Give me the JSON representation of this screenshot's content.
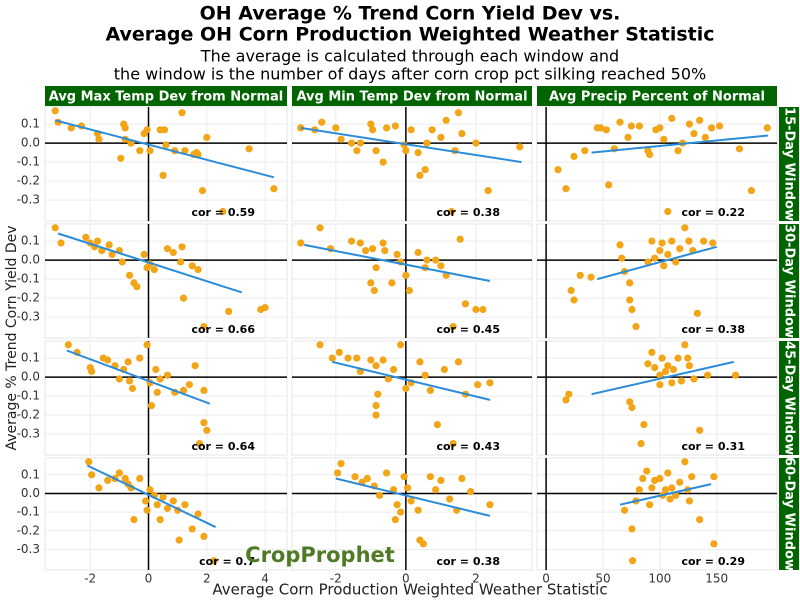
{
  "chart_data": {
    "type": "scatter",
    "title": [
      "OH Average % Trend Corn Yield Dev vs.",
      "Average OH Corn Production Weighted Weather Statistic"
    ],
    "subtitle": [
      "The average is calculated through each window and",
      "the window is the number of days after corn crop pct silking reached 50%"
    ],
    "xlabel": "Average Corn Production Weighted Weather Statistic",
    "ylabel": "Average % Trend Corn Yield Dev",
    "watermark": "CropProphet",
    "point_color": "#f2a516",
    "fit_color": "#2b8cd9",
    "strip_color": "#006400",
    "grid": true,
    "ylim": [
      -0.41,
      0.19
    ],
    "yticks": [
      0.1,
      {
        "value": 0,
        "label": "0.0"
      },
      -0.1,
      -0.2,
      -0.3
    ],
    "facet_columns": [
      {
        "label": "Avg Max Temp Dev from Normal",
        "xlim": [
          -3.55,
          4.75
        ],
        "xticks": [
          -2,
          0,
          2,
          4
        ]
      },
      {
        "label": "Avg Min Temp Dev from Normal",
        "xlim": [
          -3.25,
          3.6
        ],
        "xticks": [
          -2,
          0,
          2
        ]
      },
      {
        "label": "Avg Precip Percent of Normal",
        "xlim": [
          -8,
          203
        ],
        "xticks": [
          0,
          50,
          100,
          150
        ]
      }
    ],
    "facet_rows": [
      "15-Day Window",
      "30-Day Window",
      "45-Day Window",
      "60-Day Window"
    ],
    "panels": [
      {
        "x": [
          -3.2,
          -3.1,
          -2.65,
          -2.3,
          -1.75,
          -1.7,
          -0.85,
          -0.8,
          -0.8,
          -0.95,
          -0.6,
          -0.3,
          -0.15,
          -0.05,
          0.05,
          0.4,
          0.5,
          0.55,
          0.6,
          0.9,
          1.15,
          1.25,
          1.55,
          1.65,
          1.7,
          1.85,
          2.0,
          2.55,
          3.45,
          4.3
        ],
        "y": [
          0.17,
          0.11,
          0.08,
          0.09,
          0.05,
          0.02,
          0.1,
          0.08,
          0.02,
          -0.08,
          0.0,
          -0.04,
          0.05,
          0.07,
          -0.04,
          0.07,
          -0.17,
          0.07,
          -0.01,
          -0.04,
          0.16,
          -0.04,
          -0.06,
          -0.05,
          -0.06,
          -0.25,
          0.03,
          -0.36,
          -0.03,
          -0.24
        ],
        "fit": {
          "x": [
            -3.2,
            4.3
          ],
          "y": [
            0.12,
            -0.18
          ]
        },
        "annotation": "cor = 0.59"
      },
      {
        "x": [
          -3.0,
          -2.6,
          -2.4,
          -2.0,
          -1.85,
          -1.55,
          -1.4,
          -1.3,
          -1.0,
          -0.95,
          -0.85,
          -0.65,
          -0.55,
          -0.3,
          -0.05,
          0,
          0.15,
          0.35,
          0.4,
          0.55,
          0.6,
          0.75,
          1.0,
          1.15,
          1.4,
          1.6,
          1.5,
          2.0,
          2.35,
          1.3,
          3.25
        ],
        "y": [
          0.08,
          0.07,
          0.11,
          0.08,
          0.02,
          0.0,
          -0.04,
          0.0,
          0.1,
          0.07,
          -0.04,
          -0.1,
          0.08,
          0.09,
          -0.01,
          -0.04,
          0.07,
          -0.05,
          -0.17,
          -0.14,
          0.0,
          0.07,
          0.03,
          0.12,
          -0.04,
          0.05,
          0.16,
          0.0,
          -0.25,
          -0.36,
          -0.02
        ],
        "fit": {
          "x": [
            -3.0,
            3.3
          ],
          "y": [
            0.08,
            -0.1
          ]
        },
        "annotation": "cor = 0.38"
      },
      {
        "x": [
          10.5,
          17.5,
          24.5,
          34,
          45,
          48,
          53,
          55,
          60,
          65,
          72,
          75,
          82,
          89.5,
          91,
          96.5,
          100,
          103.5,
          107,
          110.5,
          116,
          120,
          126,
          130,
          135,
          140,
          145.5,
          152.5,
          170,
          180.5,
          194.5
        ],
        "y": [
          -0.14,
          -0.24,
          -0.07,
          -0.04,
          0.08,
          0.08,
          0.07,
          -0.22,
          -0.03,
          0.11,
          0.03,
          0.09,
          0.09,
          -0.04,
          -0.06,
          0.07,
          0.08,
          0.02,
          -0.36,
          0.13,
          -0.04,
          0.0,
          0.1,
          0.05,
          0.12,
          0.03,
          0.08,
          0.09,
          -0.03,
          -0.25,
          0.08
        ],
        "fit": {
          "x": [
            40,
            195
          ],
          "y": [
            -0.05,
            0.04
          ]
        },
        "annotation": "cor = 0.22"
      },
      {
        "x": [
          -3.2,
          -3.0,
          -2.15,
          -2.0,
          -1.85,
          -1.75,
          -1.6,
          -1.35,
          -1.25,
          -1.0,
          -0.9,
          -0.65,
          -0.5,
          -0.4,
          -0.15,
          -0.05,
          0.05,
          0.2,
          0.65,
          0.85,
          1.1,
          1.15,
          1.2,
          1.5,
          1.7,
          1.9,
          2.75,
          3.85,
          4.0
        ],
        "y": [
          0.17,
          0.09,
          0.12,
          0.09,
          0.07,
          0.1,
          0.05,
          0.08,
          0.03,
          0.05,
          -0.01,
          -0.08,
          -0.12,
          -0.14,
          0.03,
          -0.04,
          -0.02,
          -0.05,
          0.06,
          0.04,
          -0.01,
          0.07,
          -0.2,
          -0.03,
          -0.05,
          -0.35,
          -0.27,
          -0.26,
          -0.25
        ],
        "fit": {
          "x": [
            -3.1,
            3.2
          ],
          "y": [
            0.14,
            -0.17
          ]
        },
        "annotation": "cor = 0.66"
      },
      {
        "x": [
          -3.0,
          -2.45,
          -2.15,
          -1.55,
          -1.3,
          -1.15,
          -0.95,
          -0.85,
          -0.65,
          -0.6,
          -1.0,
          -0.9,
          -0.4,
          -0.25,
          -0.15,
          0,
          0.1,
          0.35,
          0.55,
          0.6,
          0.85,
          1.0,
          1.15,
          1.35,
          1.55,
          1.7,
          2.0,
          2.2
        ],
        "y": [
          0.09,
          0.17,
          0.06,
          0.1,
          0.09,
          0.05,
          0.06,
          -0.04,
          0.09,
          0.05,
          -0.12,
          -0.16,
          -0.12,
          0.03,
          -0.01,
          -0.08,
          -0.16,
          0.04,
          -0.04,
          0.0,
          0.0,
          -0.03,
          -0.08,
          -0.35,
          0.11,
          -0.23,
          -0.26,
          -0.26
        ],
        "fit": {
          "x": [
            -2.9,
            2.4
          ],
          "y": [
            0.08,
            -0.11
          ]
        },
        "annotation": "cor = 0.45"
      },
      {
        "x": [
          22,
          24.5,
          30,
          39.5,
          65,
          66.5,
          69,
          73.5,
          73.5,
          75.5,
          79,
          89.5,
          93,
          95.5,
          100,
          102,
          103.5,
          107,
          110.5,
          114,
          117.5,
          122,
          125.5,
          129,
          133,
          138.5,
          146.5
        ],
        "y": [
          -0.16,
          -0.21,
          -0.08,
          -0.09,
          0.08,
          0.01,
          -0.06,
          -0.12,
          -0.21,
          -0.26,
          -0.35,
          -0.01,
          0.1,
          0.01,
          0.05,
          0.09,
          -0.03,
          0.03,
          0.1,
          -0.01,
          0.06,
          0.17,
          0.1,
          0.05,
          -0.28,
          0.1,
          0.09
        ],
        "fit": {
          "x": [
            45,
            150
          ],
          "y": [
            -0.1,
            0.07
          ]
        },
        "annotation": "cor = 0.38"
      },
      {
        "x": [
          -2.75,
          -2.45,
          -2.0,
          -1.95,
          -1.55,
          -1.4,
          -1.15,
          -1.0,
          -0.85,
          -0.7,
          -0.65,
          -0.55,
          -0.3,
          -0.05,
          0.05,
          0.1,
          0.25,
          0.3,
          0.4,
          0.65,
          0.9,
          1.2,
          1.4,
          1.6,
          1.9,
          1.9,
          1.75,
          2.0
        ],
        "y": [
          0.17,
          0.13,
          0.05,
          0.03,
          0.1,
          0.09,
          0.06,
          -0.01,
          0.04,
          0.08,
          -0.02,
          -0.06,
          0.1,
          0.17,
          -0.03,
          -0.15,
          0.04,
          -0.08,
          -0.01,
          0.01,
          -0.08,
          -0.07,
          -0.04,
          0.06,
          -0.07,
          -0.24,
          -0.35,
          -0.28
        ],
        "fit": {
          "x": [
            -2.8,
            2.1
          ],
          "y": [
            0.14,
            -0.14
          ]
        },
        "annotation": "cor = 0.64"
      },
      {
        "x": [
          -2.45,
          -2.1,
          -1.9,
          -1.65,
          -1.4,
          -1.3,
          -1.0,
          -0.85,
          -0.8,
          -0.85,
          -0.85,
          -0.65,
          -0.5,
          -0.35,
          -0.15,
          0,
          0.15,
          0.4,
          0.55,
          0.7,
          0.9,
          1.1,
          1.35,
          1.5,
          1.7,
          2.05,
          2.4
        ],
        "y": [
          0.17,
          0.1,
          0.13,
          0.1,
          0.1,
          0.03,
          0.09,
          0.06,
          -0.09,
          -0.15,
          -0.2,
          0.09,
          -0.01,
          0.04,
          0.17,
          -0.06,
          -0.03,
          0.08,
          0.01,
          -0.07,
          -0.25,
          0.04,
          -0.35,
          0.08,
          -0.09,
          -0.04,
          -0.03
        ],
        "fit": {
          "x": [
            -2.1,
            2.4
          ],
          "y": [
            0.08,
            -0.12
          ]
        },
        "annotation": "cor = 0.43"
      },
      {
        "x": [
          17.5,
          20,
          73.5,
          75.5,
          83.5,
          86,
          89.5,
          93,
          95.5,
          100,
          100,
          102,
          105,
          107,
          110.5,
          112,
          116,
          119,
          122,
          124.5,
          126,
          130,
          135,
          142,
          166.5
        ],
        "y": [
          -0.12,
          -0.09,
          -0.13,
          -0.16,
          -0.35,
          -0.25,
          0.07,
          0.13,
          0.05,
          0.01,
          -0.04,
          0.1,
          0.03,
          0.06,
          -0.03,
          0.04,
          0.1,
          -0.02,
          0.17,
          0.1,
          0.06,
          -0.01,
          -0.28,
          0.01,
          0.01
        ],
        "fit": {
          "x": [
            40,
            165
          ],
          "y": [
            -0.09,
            0.08
          ]
        },
        "annotation": "cor = 0.31"
      },
      {
        "x": [
          -2.05,
          -1.95,
          -1.7,
          -1.4,
          -1.15,
          -1.0,
          -0.8,
          -0.7,
          -0.6,
          -0.5,
          -0.3,
          -0.1,
          -0.05,
          0.05,
          0.2,
          0.3,
          0.4,
          0.5,
          0.65,
          0.85,
          1.0,
          1.05,
          1.25,
          1.5,
          1.7,
          1.9,
          2.25
        ],
        "y": [
          0.17,
          0.1,
          0.03,
          0.07,
          0.08,
          0.11,
          0.08,
          0.05,
          0.03,
          -0.14,
          0.08,
          -0.04,
          -0.09,
          0.02,
          -0.01,
          -0.06,
          -0.14,
          -0.02,
          -0.08,
          -0.04,
          -0.09,
          -0.25,
          -0.06,
          -0.19,
          -0.11,
          -0.23,
          -0.36
        ],
        "fit": {
          "x": [
            -2.1,
            2.3
          ],
          "y": [
            0.15,
            -0.18
          ]
        },
        "annotation": "cor = 0.7"
      },
      {
        "x": [
          -1.95,
          -1.85,
          -1.45,
          -1.25,
          -1.1,
          -0.9,
          -0.75,
          -0.55,
          -0.35,
          -0.3,
          -0.25,
          -0.15,
          -0.05,
          0.05,
          0.15,
          0.35,
          0.4,
          0.5,
          0.7,
          0.85,
          1.0,
          1.25,
          1.45,
          1.6,
          1.85,
          2.4
        ],
        "y": [
          0.11,
          0.16,
          0.09,
          0.06,
          0.08,
          0.04,
          -0.01,
          0.11,
          0.02,
          -0.14,
          -0.06,
          -0.1,
          0.09,
          0.03,
          -0.04,
          -0.09,
          -0.25,
          -0.27,
          0.09,
          0.02,
          0.07,
          -0.03,
          -0.09,
          0.08,
          0.01,
          -0.06
        ],
        "fit": {
          "x": [
            -2.0,
            2.4
          ],
          "y": [
            0.08,
            -0.12
          ]
        },
        "annotation": "cor = 0.38"
      },
      {
        "x": [
          69,
          75.5,
          76,
          79,
          82,
          85,
          88.5,
          91,
          93,
          95.5,
          100,
          102.5,
          105,
          107,
          109,
          110.5,
          114,
          117.5,
          122,
          124.5,
          126,
          128,
          135,
          147.5,
          147.5
        ],
        "y": [
          -0.09,
          -0.19,
          -0.36,
          -0.04,
          0.02,
          0.08,
          0.12,
          -0.06,
          0.03,
          0.07,
          0.08,
          -0.01,
          0.02,
          0.11,
          -0.03,
          0.03,
          -0.01,
          0.06,
          0.17,
          0.02,
          -0.04,
          0.09,
          -0.14,
          0.09,
          -0.27
        ],
        "fit": {
          "x": [
            65,
            145
          ],
          "y": [
            -0.06,
            0.05
          ]
        },
        "annotation": "cor = 0.29"
      }
    ]
  }
}
